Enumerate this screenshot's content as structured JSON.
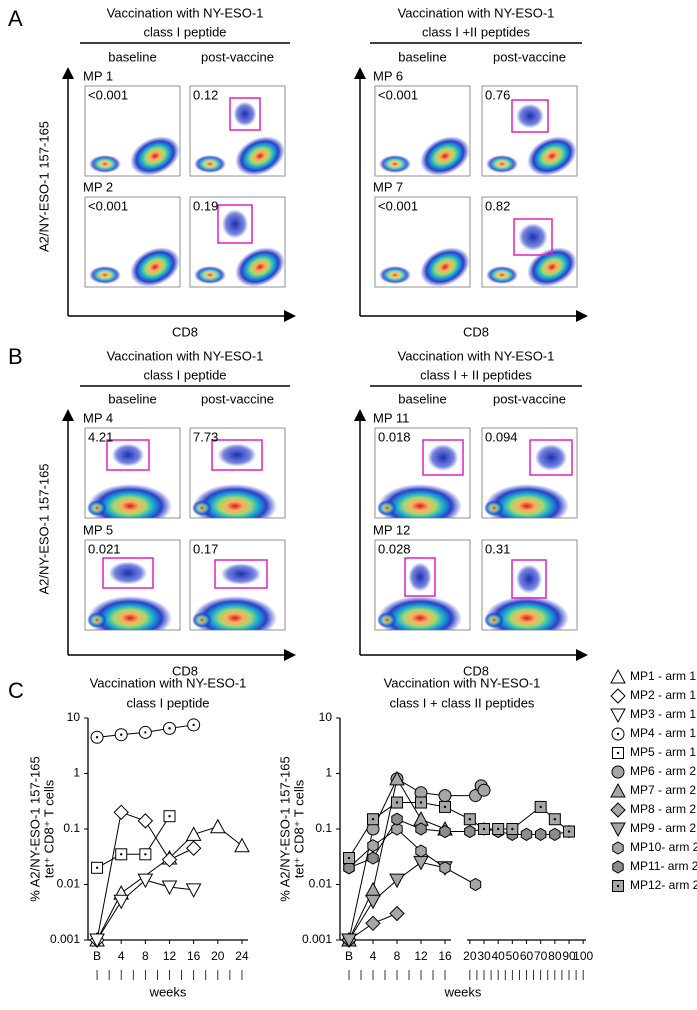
{
  "panels": [
    {
      "label": "A",
      "y_label": "A2/NY-ESO-1 157-165",
      "x_label": "CD8",
      "groups": [
        {
          "title": [
            "Vaccination with NY-ESO-1",
            "class I peptide"
          ],
          "columns": [
            "baseline",
            "post-vaccine"
          ],
          "rows": [
            {
              "name": "MP 1",
              "values": [
                "<0.001",
                "0.12"
              ]
            },
            {
              "name": "MP 2",
              "values": [
                "<0.001",
                "0.19"
              ]
            }
          ]
        },
        {
          "title": [
            "Vaccination with NY-ESO-1",
            "class I +II peptides"
          ],
          "columns": [
            "baseline",
            "post-vaccine"
          ],
          "rows": [
            {
              "name": "MP 6",
              "values": [
                "<0.001",
                "0.76"
              ]
            },
            {
              "name": "MP 7",
              "values": [
                "<0.001",
                "0.82"
              ]
            }
          ]
        }
      ]
    },
    {
      "label": "B",
      "y_label": "A2/NY-ESO-1 157-165",
      "x_label": "CD8",
      "groups": [
        {
          "title": [
            "Vaccination with NY-ESO-1",
            "class I peptide"
          ],
          "columns": [
            "baseline",
            "post-vaccine"
          ],
          "rows": [
            {
              "name": "MP 4",
              "values": [
                "4.21",
                "7.73"
              ]
            },
            {
              "name": "MP 5",
              "values": [
                "0.021",
                "0.17"
              ]
            }
          ]
        },
        {
          "title": [
            "Vaccination with NY-ESO-1",
            "class I + II peptides"
          ],
          "columns": [
            "baseline",
            "post-vaccine"
          ],
          "rows": [
            {
              "name": "MP 11",
              "values": [
                "0.018",
                "0.094"
              ]
            },
            {
              "name": "MP 12",
              "values": [
                "0.028",
                "0.31"
              ]
            }
          ]
        }
      ]
    }
  ],
  "panel_c_label": "C",
  "chart_data": [
    {
      "type": "line",
      "title": [
        "Vaccination with NY-ESO-1",
        "class I peptide"
      ],
      "ylabel": [
        "% A2/NY-ESO-1 157-165",
        "tet⁺ CD8⁺ T cells"
      ],
      "xlabel": "weeks",
      "log_y": true,
      "ylim": [
        0.001,
        10
      ],
      "yticks": [
        0.001,
        0.01,
        0.1,
        1,
        10
      ],
      "x_segments": [
        {
          "xlim": [
            -1.5,
            25
          ],
          "xticks": [
            {
              "value": 0,
              "label": "B"
            },
            4,
            8,
            12,
            16,
            20,
            24
          ]
        }
      ],
      "series": [
        {
          "name": "MP1 - arm 1",
          "marker": "triangle-up",
          "color": "#ffffff",
          "x": [
            0,
            4,
            12,
            16,
            20,
            24
          ],
          "values": [
            0.001,
            0.007,
            0.03,
            0.08,
            0.11,
            0.05
          ]
        },
        {
          "name": "MP2 - arm 1",
          "marker": "diamond",
          "color": "#ffffff",
          "x": [
            0,
            4,
            8,
            12,
            16
          ],
          "values": [
            0.001,
            0.2,
            0.14,
            0.028,
            0.045
          ]
        },
        {
          "name": "MP3 - arm 1",
          "marker": "triangle-down",
          "color": "#ffffff",
          "x": [
            0,
            4,
            8,
            12,
            16
          ],
          "values": [
            0.001,
            0.005,
            0.012,
            0.009,
            0.008
          ]
        },
        {
          "name": "MP4 - arm 1",
          "marker": "circle-dot",
          "color": "#ffffff",
          "x": [
            0,
            4,
            8,
            12,
            16
          ],
          "values": [
            4.5,
            5,
            5.5,
            6.5,
            7.5
          ]
        },
        {
          "name": "MP5 - arm 1",
          "marker": "square-dot",
          "color": "#ffffff",
          "x": [
            0,
            4,
            8,
            12
          ],
          "values": [
            0.02,
            0.035,
            0.035,
            0.17
          ]
        }
      ]
    },
    {
      "type": "line",
      "title": [
        "Vaccination with NY-ESO-1",
        "class I + class II peptides"
      ],
      "ylabel": [
        "% A2/NY-ESO-1 157-165",
        "tet⁺ CD8⁺ T cells"
      ],
      "xlabel": "weeks",
      "log_y": true,
      "ylim": [
        0.001,
        10
      ],
      "yticks": [
        0.001,
        0.01,
        0.1,
        1,
        10
      ],
      "x_segments": [
        {
          "xlim": [
            -1.5,
            17
          ],
          "xticks": [
            {
              "value": 0,
              "label": "B"
            },
            4,
            8,
            12,
            16
          ]
        },
        {
          "xlim": [
            18,
            102
          ],
          "xticks": [
            20,
            30,
            40,
            50,
            60,
            70,
            80,
            90,
            100
          ]
        }
      ],
      "series": [
        {
          "name": "MP6 - arm 2",
          "marker": "circle",
          "color": "#a6a6a6",
          "x": [
            0,
            4,
            8,
            12,
            16,
            24,
            28,
            30
          ],
          "values": [
            0.001,
            0.1,
            0.8,
            0.45,
            0.4,
            0.4,
            0.6,
            0.5
          ]
        },
        {
          "name": "MP7 - arm 2",
          "marker": "triangle-up",
          "color": "#a6a6a6",
          "x": [
            0,
            4,
            8,
            12,
            16
          ],
          "values": [
            0.001,
            0.008,
            0.8,
            0.15,
            0.1
          ]
        },
        {
          "name": "MP8 - arm 2",
          "marker": "diamond",
          "color": "#a6a6a6",
          "x": [
            0,
            4,
            8
          ],
          "values": [
            0.001,
            0.002,
            0.003
          ]
        },
        {
          "name": "MP9 - arm 2",
          "marker": "triangle-down",
          "color": "#a6a6a6",
          "x": [
            0,
            4,
            8,
            12,
            16
          ],
          "values": [
            0.001,
            0.005,
            0.012,
            0.025,
            0.02
          ]
        },
        {
          "name": "MP10- arm 2",
          "marker": "hexagon",
          "color": "#a6a6a6",
          "x": [
            0,
            4,
            8,
            12,
            16,
            24
          ],
          "values": [
            0.02,
            0.05,
            0.1,
            0.04,
            0.02,
            0.01
          ]
        },
        {
          "name": "MP11- arm 2",
          "marker": "hexagon",
          "color": "#8c8c8c",
          "x": [
            0,
            4,
            8,
            12,
            16,
            20,
            30,
            40,
            50,
            60,
            70,
            80,
            90
          ],
          "values": [
            0.02,
            0.03,
            0.15,
            0.1,
            0.09,
            0.09,
            0.1,
            0.09,
            0.08,
            0.08,
            0.08,
            0.08,
            0.09
          ]
        },
        {
          "name": "MP12- arm 2",
          "marker": "square-dot",
          "color": "#a6a6a6",
          "x": [
            0,
            4,
            8,
            12,
            16,
            20,
            30,
            40,
            50,
            70,
            80,
            90
          ],
          "values": [
            0.03,
            0.15,
            0.3,
            0.3,
            0.25,
            0.15,
            0.1,
            0.1,
            0.1,
            0.25,
            0.15,
            0.09
          ]
        }
      ]
    }
  ]
}
